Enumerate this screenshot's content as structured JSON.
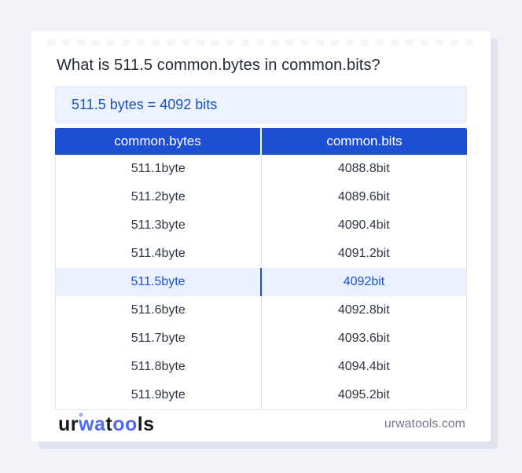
{
  "page": {
    "title": "What is 511.5 common.bytes in common.bits?",
    "answer": "511.5 bytes = 4092 bits"
  },
  "table": {
    "headers": [
      "common.bytes",
      "common.bits"
    ],
    "rows": [
      {
        "bytes": "511.1byte",
        "bits": "4088.8bit",
        "highlight": false
      },
      {
        "bytes": "511.2byte",
        "bits": "4089.6bit",
        "highlight": false
      },
      {
        "bytes": "511.3byte",
        "bits": "4090.4bit",
        "highlight": false
      },
      {
        "bytes": "511.4byte",
        "bits": "4091.2bit",
        "highlight": false
      },
      {
        "bytes": "511.5byte",
        "bits": "4092bit",
        "highlight": true
      },
      {
        "bytes": "511.6byte",
        "bits": "4092.8bit",
        "highlight": false
      },
      {
        "bytes": "511.7byte",
        "bits": "4093.6bit",
        "highlight": false
      },
      {
        "bytes": "511.8byte",
        "bits": "4094.4bit",
        "highlight": false
      },
      {
        "bytes": "511.9byte",
        "bits": "4095.2bit",
        "highlight": false
      }
    ]
  },
  "footer": {
    "logo": {
      "p1": "ur",
      "p2": "wa",
      "p3": "t",
      "p4": "oo",
      "p5": "ls"
    },
    "site": "urwatools.com"
  },
  "colors": {
    "page_background": "#f1f3f9",
    "card_background": "#ffffff",
    "card_shadow": "#dfe3ee",
    "header_blue": "#1e4ed1",
    "answer_background": "#ecf3fd",
    "answer_text": "#1b50c0",
    "highlight_row_background": "#e8f1fd",
    "highlight_text": "#1d52c8",
    "row_text": "#2e3743",
    "divider": "#e2e6ee",
    "logo_blue": "#4e6bf1",
    "site_text": "#70798a"
  }
}
